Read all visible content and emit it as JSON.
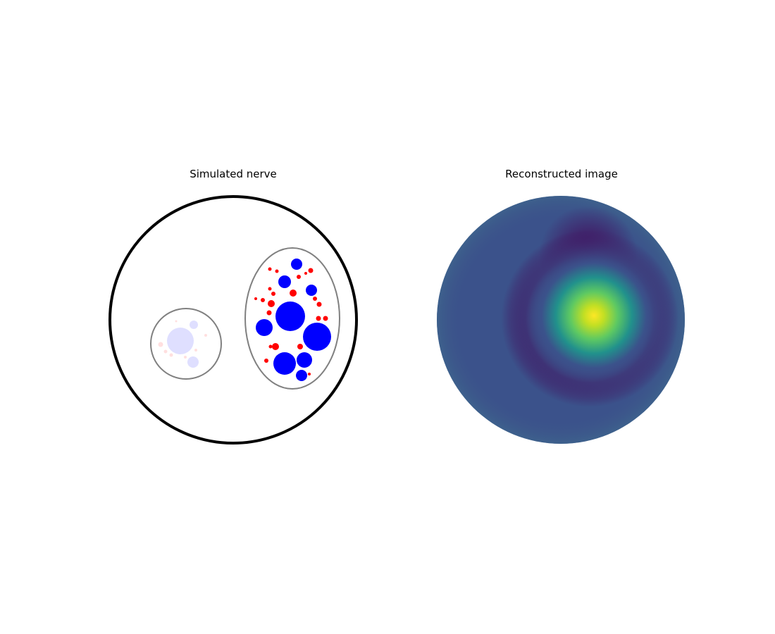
{
  "panels": {
    "left_title": "Simulated nerve",
    "right_title": "Reconstructed image"
  },
  "nerve": {
    "colors": {
      "nerve_outline": "#000000",
      "fascicle_outline": "#808080",
      "large_fibre": "#0000ff",
      "small_fibre": "#ff0000",
      "inactive_fascicle_fill_opacity": 0.12
    },
    "fascicles": [
      {
        "id": "inactive",
        "shape": "circle",
        "active": false
      },
      {
        "id": "active",
        "shape": "ellipse",
        "active": true
      }
    ]
  },
  "reconstruction": {
    "colormap": "viridis",
    "hotspot_region": "right of centre",
    "low_ring_region": "surrounding the hotspot",
    "colors": {
      "low": "#440154",
      "background": "#3b528b",
      "mid": "#21918c",
      "high": "#5ec962",
      "peak": "#fde725"
    }
  }
}
